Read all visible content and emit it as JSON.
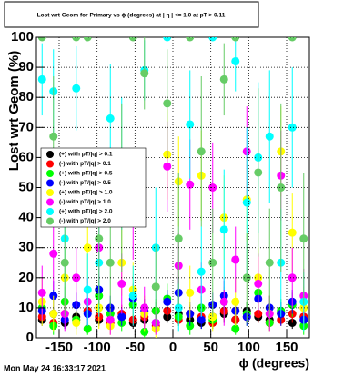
{
  "chart_data": {
    "type": "scatter",
    "title": "Lost wrt Geom for Primary vs ϕ (degrees) at | η | <= 1.0 at pT > 0.11",
    "x_label": "ϕ (degrees)",
    "y_label": "Lost wrt Geom (%)",
    "timestamp": "Mon May 24 16:33:17 2021",
    "xlim": [
      -180,
      180
    ],
    "ylim": [
      0,
      100
    ],
    "xticks": [
      -150,
      -100,
      -50,
      0,
      50,
      100,
      150
    ],
    "yticks": [
      0,
      10,
      20,
      30,
      40,
      50,
      60,
      70,
      80,
      90,
      100
    ],
    "grid": true,
    "legend": "left",
    "x": [
      -172.5,
      -157.5,
      -142.5,
      -127.5,
      -112.5,
      -97.5,
      -82.5,
      -67.5,
      -52.5,
      -37.5,
      -22.5,
      -7.5,
      7.5,
      22.5,
      37.5,
      52.5,
      67.5,
      82.5,
      97.5,
      112.5,
      127.5,
      142.5,
      157.5,
      172.5
    ],
    "series": [
      {
        "name": "(+) with pT/|q| > 0.1",
        "color": "#000000",
        "values": [
          6,
          8,
          5,
          7,
          9,
          6,
          8,
          7,
          5,
          6,
          9,
          7,
          8,
          6,
          5,
          7,
          8,
          6,
          9,
          7,
          6,
          8,
          5,
          7
        ],
        "errors": [
          2,
          2,
          2,
          2,
          3,
          2,
          2,
          2,
          2,
          2,
          3,
          2,
          2,
          2,
          2,
          2,
          3,
          2,
          3,
          2,
          2,
          2,
          2,
          2
        ]
      },
      {
        "name": "(-) with pT/|q| > 0.1",
        "color": "#ff0000",
        "values": [
          7,
          5,
          8,
          6,
          9,
          7,
          5,
          8,
          6,
          7,
          4,
          9,
          6,
          8,
          7,
          5,
          9,
          6,
          7,
          8,
          5,
          6,
          8,
          7
        ],
        "errors": [
          2,
          2,
          3,
          2,
          3,
          2,
          2,
          3,
          2,
          2,
          2,
          3,
          2,
          3,
          2,
          2,
          3,
          2,
          2,
          3,
          2,
          2,
          3,
          2
        ]
      },
      {
        "name": "(+) with pT/|q| > 0.5",
        "color": "#00ff00",
        "values": [
          10,
          4,
          12,
          6,
          3,
          14,
          8,
          5,
          11,
          2,
          9,
          13,
          7,
          4,
          10,
          6,
          12,
          3,
          8,
          15,
          5,
          9,
          11,
          4
        ],
        "errors": [
          4,
          3,
          5,
          3,
          2,
          5,
          4,
          3,
          4,
          2,
          4,
          5,
          3,
          3,
          4,
          3,
          5,
          2,
          4,
          5,
          3,
          4,
          4,
          3
        ]
      },
      {
        "name": "(-) with pT/|q| > 0.5",
        "color": "#0000ff",
        "values": [
          9,
          14,
          6,
          11,
          8,
          16,
          10,
          7,
          13,
          9,
          5,
          12,
          15,
          8,
          6,
          11,
          14,
          9,
          7,
          13,
          10,
          8,
          12,
          6
        ],
        "errors": [
          4,
          5,
          3,
          4,
          4,
          5,
          4,
          3,
          5,
          4,
          3,
          4,
          5,
          4,
          3,
          4,
          5,
          4,
          3,
          5,
          4,
          4,
          4,
          3
        ]
      },
      {
        "name": "(+) with pT/|q| > 1.0",
        "color": "#ffff00",
        "values": [
          12,
          8,
          20,
          5,
          30,
          10,
          4,
          25,
          16,
          8,
          3,
          61,
          52,
          15,
          54,
          7,
          40,
          12,
          46,
          20,
          8,
          62,
          35,
          10
        ],
        "errors": [
          8,
          6,
          10,
          4,
          12,
          7,
          3,
          11,
          9,
          6,
          3,
          15,
          15,
          9,
          15,
          5,
          14,
          8,
          14,
          10,
          6,
          15,
          13,
          7
        ]
      },
      {
        "name": "(-) with pT/|q| > 1.0",
        "color": "#ff00ff",
        "values": [
          15,
          28,
          8,
          20,
          12,
          30,
          6,
          18,
          40,
          10,
          5,
          57,
          24,
          51,
          16,
          50,
          12,
          26,
          62,
          18,
          8,
          54,
          20,
          14
        ],
        "errors": [
          9,
          12,
          6,
          10,
          8,
          12,
          5,
          10,
          14,
          7,
          4,
          15,
          11,
          15,
          9,
          15,
          8,
          11,
          15,
          10,
          6,
          15,
          10,
          9
        ]
      },
      {
        "name": "(+) with pT/|q| > 2.0",
        "color": "#00ffff",
        "values": [
          86,
          82,
          33,
          83,
          16,
          25,
          73,
          58,
          14,
          89,
          30,
          100,
          10,
          71,
          22,
          100,
          36,
          92,
          45,
          60,
          67,
          25,
          70,
          12
        ],
        "errors": [
          12,
          14,
          20,
          14,
          12,
          18,
          18,
          22,
          10,
          10,
          20,
          0,
          8,
          18,
          15,
          0,
          20,
          10,
          25,
          25,
          22,
          18,
          20,
          10
        ]
      },
      {
        "name": "(-) with pT/|q| > 2.0",
        "color": "#66cc66",
        "values": [
          100,
          67,
          25,
          100,
          100,
          33,
          25,
          50,
          100,
          88,
          17,
          78,
          33,
          100,
          62,
          25,
          86,
          100,
          20,
          55,
          25,
          50,
          100,
          33
        ],
        "errors": [
          0,
          20,
          18,
          0,
          0,
          22,
          18,
          28,
          0,
          12,
          14,
          18,
          22,
          0,
          25,
          18,
          12,
          0,
          15,
          28,
          18,
          28,
          0,
          22
        ]
      }
    ]
  }
}
